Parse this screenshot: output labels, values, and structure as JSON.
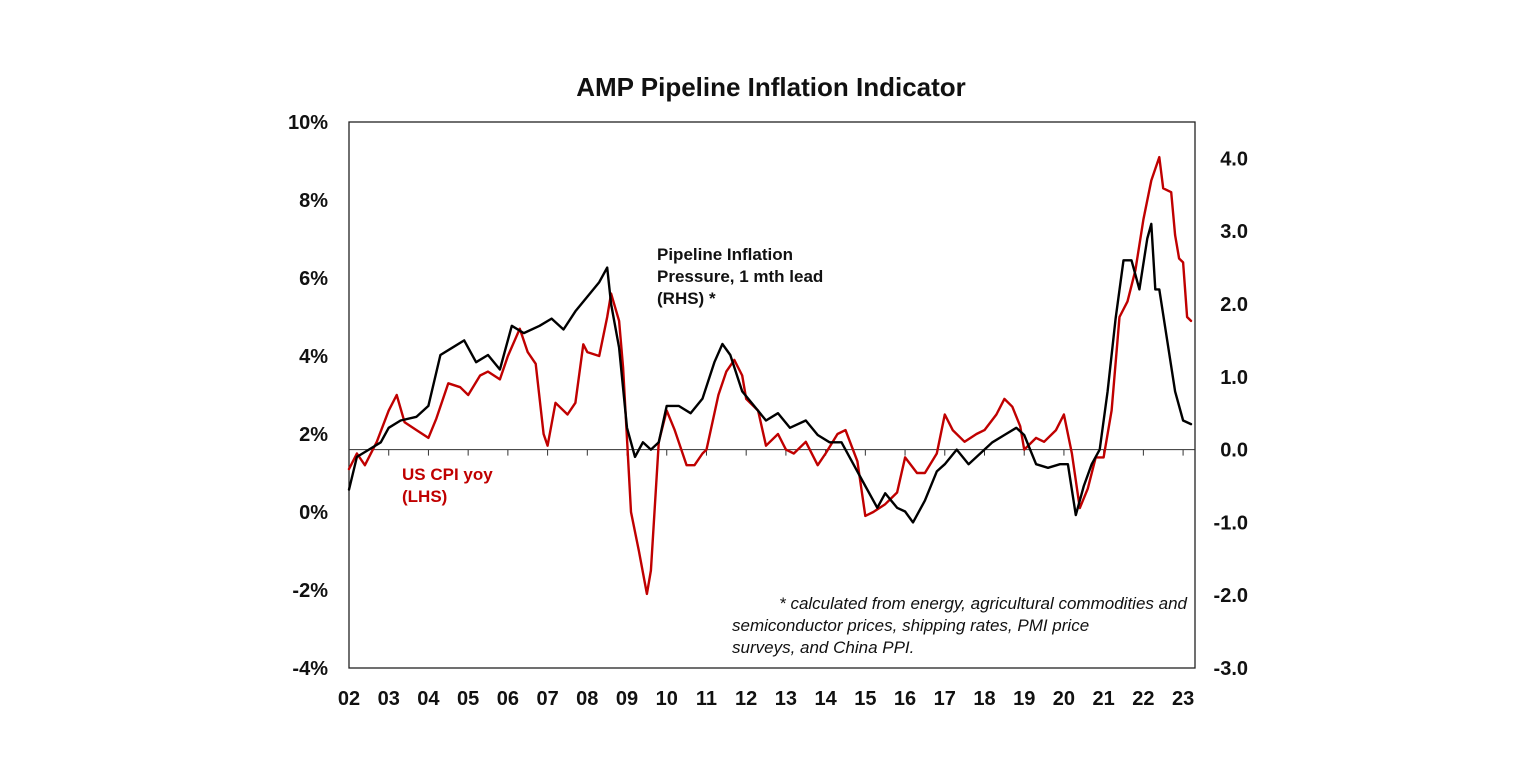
{
  "chart_data": {
    "type": "line",
    "title": "AMP Pipeline Inflation Indicator",
    "x_tick_labels": [
      "02",
      "03",
      "04",
      "05",
      "06",
      "07",
      "08",
      "09",
      "10",
      "11",
      "12",
      "13",
      "14",
      "15",
      "16",
      "17",
      "18",
      "19",
      "20",
      "21",
      "22",
      "23"
    ],
    "x_range": [
      2002.0,
      2023.3
    ],
    "left_axis": {
      "label": "US CPI yoy",
      "ticks": [
        "10%",
        "8%",
        "6%",
        "4%",
        "2%",
        "0%",
        "-2%",
        "-4%"
      ],
      "tick_values": [
        10,
        8,
        6,
        4,
        2,
        0,
        -2,
        -4
      ],
      "ylim": [
        -4,
        10
      ]
    },
    "right_axis": {
      "label": "Pipeline Inflation Pressure",
      "ticks": [
        "4.0",
        "3.0",
        "2.0",
        "1.0",
        "0.0",
        "-1.0",
        "-2.0",
        "-3.0"
      ],
      "tick_values": [
        4,
        3,
        2,
        1,
        0,
        -1,
        -2,
        -3
      ],
      "ylim": [
        -3.0,
        4.5
      ]
    },
    "series": [
      {
        "name": "US CPI yoy (LHS)",
        "axis": "left",
        "color": "#c00000",
        "x": [
          2002.0,
          2002.2,
          2002.4,
          2002.7,
          2003.0,
          2003.2,
          2003.4,
          2003.7,
          2004.0,
          2004.2,
          2004.5,
          2004.8,
          2005.0,
          2005.3,
          2005.5,
          2005.8,
          2006.0,
          2006.3,
          2006.5,
          2006.7,
          2006.9,
          2007.0,
          2007.2,
          2007.5,
          2007.7,
          2007.9,
          2008.0,
          2008.3,
          2008.5,
          2008.6,
          2008.8,
          2008.9,
          2009.1,
          2009.3,
          2009.5,
          2009.6,
          2009.8,
          2010.0,
          2010.2,
          2010.5,
          2010.7,
          2010.9,
          2011.0,
          2011.3,
          2011.5,
          2011.7,
          2011.9,
          2012.0,
          2012.3,
          2012.5,
          2012.8,
          2013.0,
          2013.2,
          2013.5,
          2013.8,
          2014.0,
          2014.3,
          2014.5,
          2014.8,
          2015.0,
          2015.2,
          2015.5,
          2015.8,
          2016.0,
          2016.3,
          2016.5,
          2016.8,
          2017.0,
          2017.2,
          2017.5,
          2017.8,
          2018.0,
          2018.3,
          2018.5,
          2018.7,
          2018.9,
          2019.0,
          2019.3,
          2019.5,
          2019.8,
          2020.0,
          2020.2,
          2020.4,
          2020.6,
          2020.8,
          2021.0,
          2021.2,
          2021.4,
          2021.6,
          2021.8,
          2022.0,
          2022.2,
          2022.4,
          2022.5,
          2022.7,
          2022.8,
          2022.9,
          2023.0,
          2023.1,
          2023.2
        ],
        "values": [
          1.1,
          1.5,
          1.2,
          1.8,
          2.6,
          3.0,
          2.3,
          2.1,
          1.9,
          2.4,
          3.3,
          3.2,
          3.0,
          3.5,
          3.6,
          3.4,
          4.0,
          4.7,
          4.1,
          3.8,
          2.0,
          1.7,
          2.8,
          2.5,
          2.8,
          4.3,
          4.1,
          4.0,
          5.0,
          5.6,
          4.9,
          3.7,
          0.0,
          -1.0,
          -2.1,
          -1.5,
          1.8,
          2.6,
          2.1,
          1.2,
          1.2,
          1.5,
          1.6,
          3.0,
          3.6,
          3.9,
          3.5,
          2.9,
          2.6,
          1.7,
          2.0,
          1.6,
          1.5,
          1.8,
          1.2,
          1.5,
          2.0,
          2.1,
          1.3,
          -0.1,
          0.0,
          0.2,
          0.5,
          1.4,
          1.0,
          1.0,
          1.5,
          2.5,
          2.1,
          1.8,
          2.0,
          2.1,
          2.5,
          2.9,
          2.7,
          2.2,
          1.6,
          1.9,
          1.8,
          2.1,
          2.5,
          1.5,
          0.1,
          0.6,
          1.4,
          1.4,
          2.6,
          5.0,
          5.4,
          6.2,
          7.5,
          8.5,
          9.1,
          8.3,
          8.2,
          7.1,
          6.5,
          6.4,
          5.0,
          4.9
        ]
      },
      {
        "name": "Pipeline Inflation Pressure, 1 mth lead (RHS) *",
        "axis": "right",
        "color": "#000000",
        "x": [
          2002.0,
          2002.2,
          2002.5,
          2002.8,
          2003.0,
          2003.3,
          2003.7,
          2004.0,
          2004.3,
          2004.6,
          2004.9,
          2005.2,
          2005.5,
          2005.8,
          2006.1,
          2006.4,
          2006.8,
          2007.1,
          2007.4,
          2007.7,
          2008.0,
          2008.3,
          2008.5,
          2008.6,
          2008.8,
          2009.0,
          2009.2,
          2009.4,
          2009.6,
          2009.8,
          2010.0,
          2010.3,
          2010.6,
          2010.9,
          2011.2,
          2011.4,
          2011.6,
          2011.9,
          2012.2,
          2012.5,
          2012.8,
          2013.1,
          2013.5,
          2013.8,
          2014.1,
          2014.4,
          2014.7,
          2015.0,
          2015.3,
          2015.5,
          2015.8,
          2016.0,
          2016.2,
          2016.5,
          2016.8,
          2017.0,
          2017.3,
          2017.6,
          2017.9,
          2018.2,
          2018.5,
          2018.8,
          2019.0,
          2019.3,
          2019.6,
          2019.9,
          2020.1,
          2020.3,
          2020.5,
          2020.7,
          2020.9,
          2021.1,
          2021.3,
          2021.5,
          2021.7,
          2021.9,
          2022.1,
          2022.2,
          2022.3,
          2022.4,
          2022.6,
          2022.8,
          2023.0,
          2023.2
        ],
        "values": [
          -0.55,
          -0.1,
          0.0,
          0.1,
          0.3,
          0.4,
          0.45,
          0.6,
          1.3,
          1.4,
          1.5,
          1.2,
          1.3,
          1.1,
          1.7,
          1.6,
          1.7,
          1.8,
          1.65,
          1.9,
          2.1,
          2.3,
          2.5,
          2.0,
          1.4,
          0.3,
          -0.1,
          0.1,
          0.0,
          0.1,
          0.6,
          0.6,
          0.5,
          0.7,
          1.2,
          1.45,
          1.3,
          0.8,
          0.6,
          0.4,
          0.5,
          0.3,
          0.4,
          0.2,
          0.1,
          0.1,
          -0.2,
          -0.5,
          -0.8,
          -0.6,
          -0.8,
          -0.85,
          -1.0,
          -0.7,
          -0.3,
          -0.2,
          0.0,
          -0.2,
          -0.05,
          0.1,
          0.2,
          0.3,
          0.2,
          -0.2,
          -0.25,
          -0.2,
          -0.2,
          -0.9,
          -0.5,
          -0.2,
          0.0,
          0.8,
          1.8,
          2.6,
          2.6,
          2.2,
          2.9,
          3.1,
          2.2,
          2.2,
          1.5,
          0.8,
          0.4,
          0.35
        ]
      }
    ],
    "annotations": {
      "rhs_label": [
        "Pipeline Inflation",
        "Pressure, 1 mth lead",
        "(RHS) *"
      ],
      "lhs_label": [
        "US CPI yoy",
        "(LHS)"
      ],
      "footnote": [
        "* calculated from energy, agricultural commodities and",
        "semiconductor prices, shipping rates, PMI price",
        "surveys, and China PPI."
      ]
    }
  }
}
